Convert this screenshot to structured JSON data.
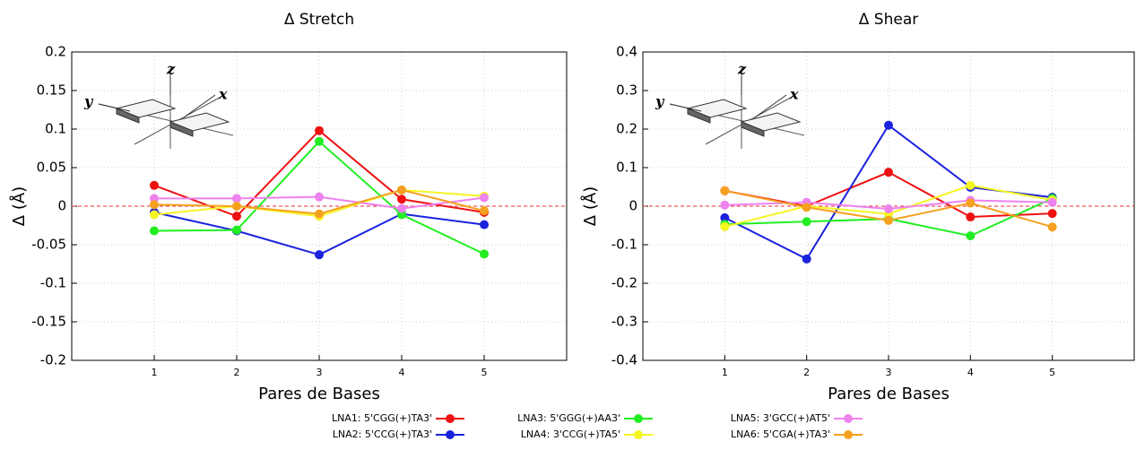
{
  "chart_data": [
    {
      "type": "line",
      "title": "Δ Stretch",
      "x_label": "Pares de Bases",
      "y_label": "Δ (Å)",
      "x": [
        1,
        2,
        3,
        4,
        5
      ],
      "xlim": [
        0,
        6
      ],
      "xticks": [
        1,
        2,
        3,
        4,
        5
      ],
      "ylim": [
        -0.2,
        0.2
      ],
      "yticks": [
        0.2,
        0.15,
        0.1,
        0.05,
        0,
        -0.05,
        -0.1,
        -0.15,
        -0.2
      ],
      "grid": true,
      "reference_line": 0,
      "reference_color": "#e83030",
      "inset_axis_labels": [
        "z",
        "x",
        "y"
      ],
      "series": [
        {
          "name": "LNA1:  5'CGG(+)TA3'",
          "color": "#ee1111",
          "values": [
            0.027,
            -0.013,
            0.098,
            0.009,
            -0.008
          ]
        },
        {
          "name": "LNA2:  5'CCG(+)TA3'",
          "color": "#1a22dd",
          "values": [
            -0.008,
            -0.032,
            -0.063,
            -0.01,
            -0.024
          ]
        },
        {
          "name": "LNA3:  5'GGG(+)AA3'",
          "color": "#22ee22",
          "values": [
            -0.032,
            -0.031,
            0.084,
            -0.011,
            -0.062
          ]
        },
        {
          "name": "LNA4:  3'CCG(+)TA5'",
          "color": "#f5f522",
          "values": [
            -0.011,
            0,
            -0.013,
            0.021,
            0.013
          ]
        },
        {
          "name": "LNA5:  3'GCC(+)AT5'",
          "color": "#ee82ee",
          "values": [
            0.01,
            0.01,
            0.012,
            -0.003,
            0.011
          ]
        },
        {
          "name": "LNA6:  5'CGA(+)TA3'",
          "color": "#f5a020",
          "values": [
            0.002,
            0,
            -0.01,
            0.021,
            -0.006
          ]
        }
      ]
    },
    {
      "type": "line",
      "title": "Δ Shear",
      "x_label": "Pares de Bases",
      "y_label": "Δ (Å)",
      "x": [
        1,
        2,
        3,
        4,
        5
      ],
      "xlim": [
        0,
        6
      ],
      "xticks": [
        1,
        2,
        3,
        4,
        5
      ],
      "ylim": [
        -0.4,
        0.4
      ],
      "yticks": [
        0.4,
        0.3,
        0.2,
        0.1,
        0,
        -0.1,
        -0.2,
        -0.3,
        -0.4
      ],
      "grid": true,
      "reference_line": 0,
      "reference_color": "#e83030",
      "inset_axis_labels": [
        "z",
        "x",
        "y"
      ],
      "series": [
        {
          "color": "#ee1111",
          "values": [
            0.04,
            0,
            0.088,
            -0.028,
            -0.019
          ]
        },
        {
          "color": "#1a22dd",
          "values": [
            -0.03,
            -0.137,
            0.21,
            0.049,
            0.023
          ]
        },
        {
          "color": "#22ee22",
          "values": [
            -0.047,
            -0.04,
            -0.033,
            -0.077,
            0.02
          ]
        },
        {
          "color": "#f5f522",
          "values": [
            -0.053,
            0,
            -0.02,
            0.054,
            0.016
          ]
        },
        {
          "color": "#ee82ee",
          "values": [
            0.003,
            0.01,
            -0.007,
            0.015,
            0.01
          ]
        },
        {
          "color": "#f5a020",
          "values": [
            0.04,
            -0.003,
            -0.037,
            0.008,
            -0.054
          ]
        }
      ]
    }
  ]
}
